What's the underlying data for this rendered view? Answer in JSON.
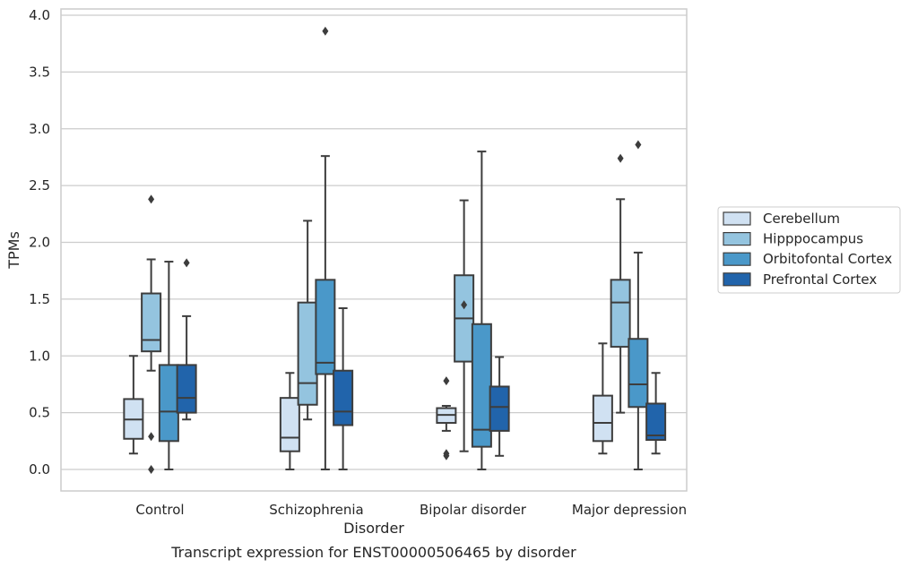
{
  "chart_data": {
    "type": "box",
    "title": "",
    "caption": "Transcript expression for ENST00000506465 by disorder",
    "xlabel": "Disorder",
    "ylabel": "TPMs",
    "ylim": [
      -0.18,
      4.05
    ],
    "yticks": [
      "0.0",
      "0.5",
      "1.0",
      "1.5",
      "2.0",
      "2.5",
      "3.0",
      "3.5",
      "4.0"
    ],
    "grid": "horizontal",
    "legend_position": "right",
    "categories": [
      "Control",
      "Schizophrenia",
      "Bipolar disorder",
      "Major depression"
    ],
    "series": [
      {
        "name": "Cerebellum",
        "color": "#d0e1f2",
        "boxes": [
          {
            "whislo": 0.14,
            "q1": 0.27,
            "median": 0.44,
            "q3": 0.62,
            "whishi": 1.0,
            "fliers": []
          },
          {
            "whislo": 0.0,
            "q1": 0.16,
            "median": 0.28,
            "q3": 0.63,
            "whishi": 0.85,
            "fliers": []
          },
          {
            "whislo": 0.34,
            "q1": 0.41,
            "median": 0.48,
            "q3": 0.54,
            "whishi": 0.56,
            "fliers": [
              0.78,
              0.14,
              0.12
            ]
          },
          {
            "whislo": 0.14,
            "q1": 0.25,
            "median": 0.41,
            "q3": 0.65,
            "whishi": 1.11,
            "fliers": []
          }
        ]
      },
      {
        "name": "Hipppocampus",
        "color": "#94c4df",
        "boxes": [
          {
            "whislo": 0.87,
            "q1": 1.04,
            "median": 1.14,
            "q3": 1.55,
            "whishi": 1.85,
            "fliers": [
              2.38,
              0.29,
              0.0
            ]
          },
          {
            "whislo": 0.44,
            "q1": 0.57,
            "median": 0.76,
            "q3": 1.47,
            "whishi": 2.19,
            "fliers": []
          },
          {
            "whislo": 0.16,
            "q1": 0.95,
            "median": 1.33,
            "q3": 1.71,
            "whishi": 2.37,
            "fliers": [
              1.45
            ]
          },
          {
            "whislo": 0.5,
            "q1": 1.08,
            "median": 1.47,
            "q3": 1.67,
            "whishi": 2.38,
            "fliers": [
              2.74
            ]
          }
        ]
      },
      {
        "name": "Orbitofontal Cortex",
        "color": "#4a98c9",
        "boxes": [
          {
            "whislo": 0.0,
            "q1": 0.25,
            "median": 0.51,
            "q3": 0.92,
            "whishi": 1.83,
            "fliers": []
          },
          {
            "whislo": 0.0,
            "q1": 0.84,
            "median": 0.94,
            "q3": 1.67,
            "whishi": 2.76,
            "fliers": [
              3.86
            ]
          },
          {
            "whislo": 0.0,
            "q1": 0.2,
            "median": 0.35,
            "q3": 1.28,
            "whishi": 2.8,
            "fliers": []
          },
          {
            "whislo": 0.0,
            "q1": 0.55,
            "median": 0.75,
            "q3": 1.15,
            "whishi": 1.91,
            "fliers": [
              2.86
            ]
          }
        ]
      },
      {
        "name": "Prefrontal Cortex",
        "color": "#2164ab",
        "boxes": [
          {
            "whislo": 0.44,
            "q1": 0.5,
            "median": 0.63,
            "q3": 0.92,
            "whishi": 1.35,
            "fliers": [
              1.82
            ]
          },
          {
            "whislo": 0.0,
            "q1": 0.39,
            "median": 0.51,
            "q3": 0.87,
            "whishi": 1.42,
            "fliers": []
          },
          {
            "whislo": 0.12,
            "q1": 0.34,
            "median": 0.55,
            "q3": 0.73,
            "whishi": 0.99,
            "fliers": []
          },
          {
            "whislo": 0.14,
            "q1": 0.26,
            "median": 0.3,
            "q3": 0.58,
            "whishi": 0.85,
            "fliers": []
          }
        ]
      }
    ]
  }
}
